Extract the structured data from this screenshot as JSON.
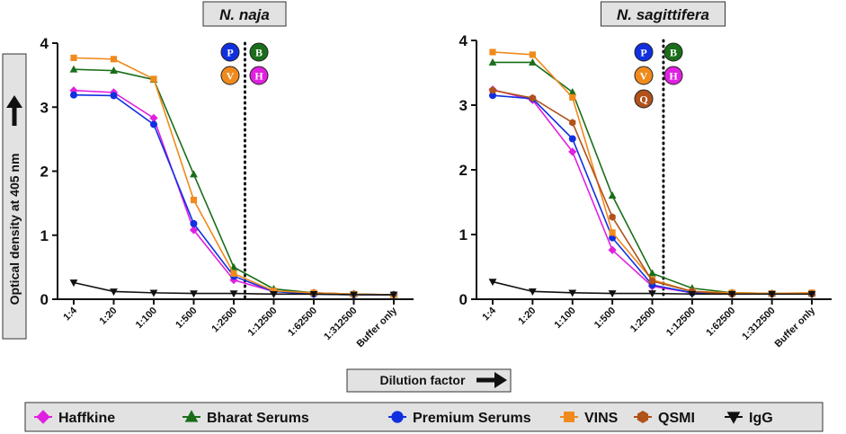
{
  "chart_data": [
    {
      "type": "line",
      "title": "N. naja",
      "xlabel": "Dilution factor",
      "ylabel": "Optical density at 405 nm",
      "ylim": [
        0,
        4
      ],
      "yticks": [
        "0",
        "1",
        "2",
        "3",
        "4"
      ],
      "categories": [
        "1:4",
        "1:20",
        "1:100",
        "1:500",
        "1:2500",
        "1:12500",
        "1:62500",
        "1:312500",
        "Buffer only"
      ],
      "vline_after_category": "1:2500",
      "badges": [
        {
          "letter": "P",
          "color": "#1030e0"
        },
        {
          "letter": "B",
          "color": "#1a6e1a"
        },
        {
          "letter": "V",
          "color": "#f08a1c"
        },
        {
          "letter": "H",
          "color": "#e020e0"
        }
      ],
      "series": [
        {
          "name": "Haffkine",
          "color": "#e020e0",
          "marker": "diamond",
          "values": [
            3.26,
            3.23,
            2.83,
            1.08,
            0.3,
            0.12,
            0.1,
            0.08,
            0.07
          ]
        },
        {
          "name": "Bharat Serums",
          "color": "#1a6e1a",
          "marker": "triangle",
          "values": [
            3.59,
            3.57,
            3.43,
            1.95,
            0.5,
            0.16,
            0.1,
            0.08,
            0.07
          ]
        },
        {
          "name": "Premium Serums",
          "color": "#1030e0",
          "marker": "circle",
          "values": [
            3.19,
            3.18,
            2.73,
            1.18,
            0.36,
            0.12,
            0.08,
            0.07,
            0.07
          ]
        },
        {
          "name": "VINS",
          "color": "#f08a1c",
          "marker": "square",
          "values": [
            3.77,
            3.75,
            3.44,
            1.55,
            0.4,
            0.13,
            0.1,
            0.08,
            0.07
          ]
        },
        {
          "name": "IgG",
          "color": "#111111",
          "marker": "invtriangle",
          "values": [
            0.26,
            0.12,
            0.1,
            0.09,
            0.09,
            0.08,
            0.08,
            0.07,
            0.07
          ]
        }
      ]
    },
    {
      "type": "line",
      "title": "N. sagittifera",
      "xlabel": "Dilution factor",
      "ylabel": "Optical density at 405 nm",
      "ylim": [
        0,
        4
      ],
      "yticks": [
        "0",
        "1",
        "2",
        "3",
        "4"
      ],
      "categories": [
        "1:4",
        "1:20",
        "1:100",
        "1:500",
        "1:2500",
        "1:12500",
        "1:62500",
        "1:312500",
        "Buffer only"
      ],
      "vline_after_category": "1:2500",
      "badges": [
        {
          "letter": "P",
          "color": "#1030e0"
        },
        {
          "letter": "B",
          "color": "#1a6e1a"
        },
        {
          "letter": "V",
          "color": "#f08a1c"
        },
        {
          "letter": "H",
          "color": "#e020e0"
        },
        {
          "letter": "Q",
          "color": "#b0521a"
        }
      ],
      "series": [
        {
          "name": "Haffkine",
          "color": "#e020e0",
          "marker": "diamond",
          "values": [
            3.24,
            3.08,
            2.28,
            0.76,
            0.2,
            0.1,
            0.08,
            0.08,
            0.08
          ]
        },
        {
          "name": "Bharat Serums",
          "color": "#1a6e1a",
          "marker": "triangle",
          "values": [
            3.66,
            3.66,
            3.2,
            1.6,
            0.4,
            0.17,
            0.1,
            0.09,
            0.09
          ]
        },
        {
          "name": "Premium Serums",
          "color": "#1030e0",
          "marker": "circle",
          "values": [
            3.15,
            3.1,
            2.48,
            0.95,
            0.22,
            0.1,
            0.08,
            0.08,
            0.08
          ]
        },
        {
          "name": "VINS",
          "color": "#f08a1c",
          "marker": "square",
          "values": [
            3.82,
            3.78,
            3.12,
            1.03,
            0.3,
            0.12,
            0.1,
            0.09,
            0.1
          ]
        },
        {
          "name": "QSMI",
          "color": "#b0521a",
          "marker": "hexagon",
          "values": [
            3.23,
            3.11,
            2.73,
            1.27,
            0.28,
            0.12,
            0.08,
            0.08,
            0.08
          ]
        },
        {
          "name": "IgG",
          "color": "#111111",
          "marker": "invtriangle",
          "values": [
            0.27,
            0.12,
            0.1,
            0.09,
            0.09,
            0.08,
            0.08,
            0.08,
            0.08
          ]
        }
      ]
    }
  ],
  "xlabel_box": "Dilution factor",
  "ylabel_box": "Optical density at 405 nm",
  "legend": [
    {
      "label": "Haffkine",
      "color": "#e020e0",
      "marker": "diamond"
    },
    {
      "label": "Bharat Serums",
      "color": "#1a6e1a",
      "marker": "triangle"
    },
    {
      "label": "Premium Serums",
      "color": "#1030e0",
      "marker": "circle"
    },
    {
      "label": "VINS",
      "color": "#f08a1c",
      "marker": "square"
    },
    {
      "label": "QSMI",
      "color": "#b0521a",
      "marker": "hexagon"
    },
    {
      "label": "IgG",
      "color": "#111111",
      "marker": "invtriangle"
    }
  ]
}
